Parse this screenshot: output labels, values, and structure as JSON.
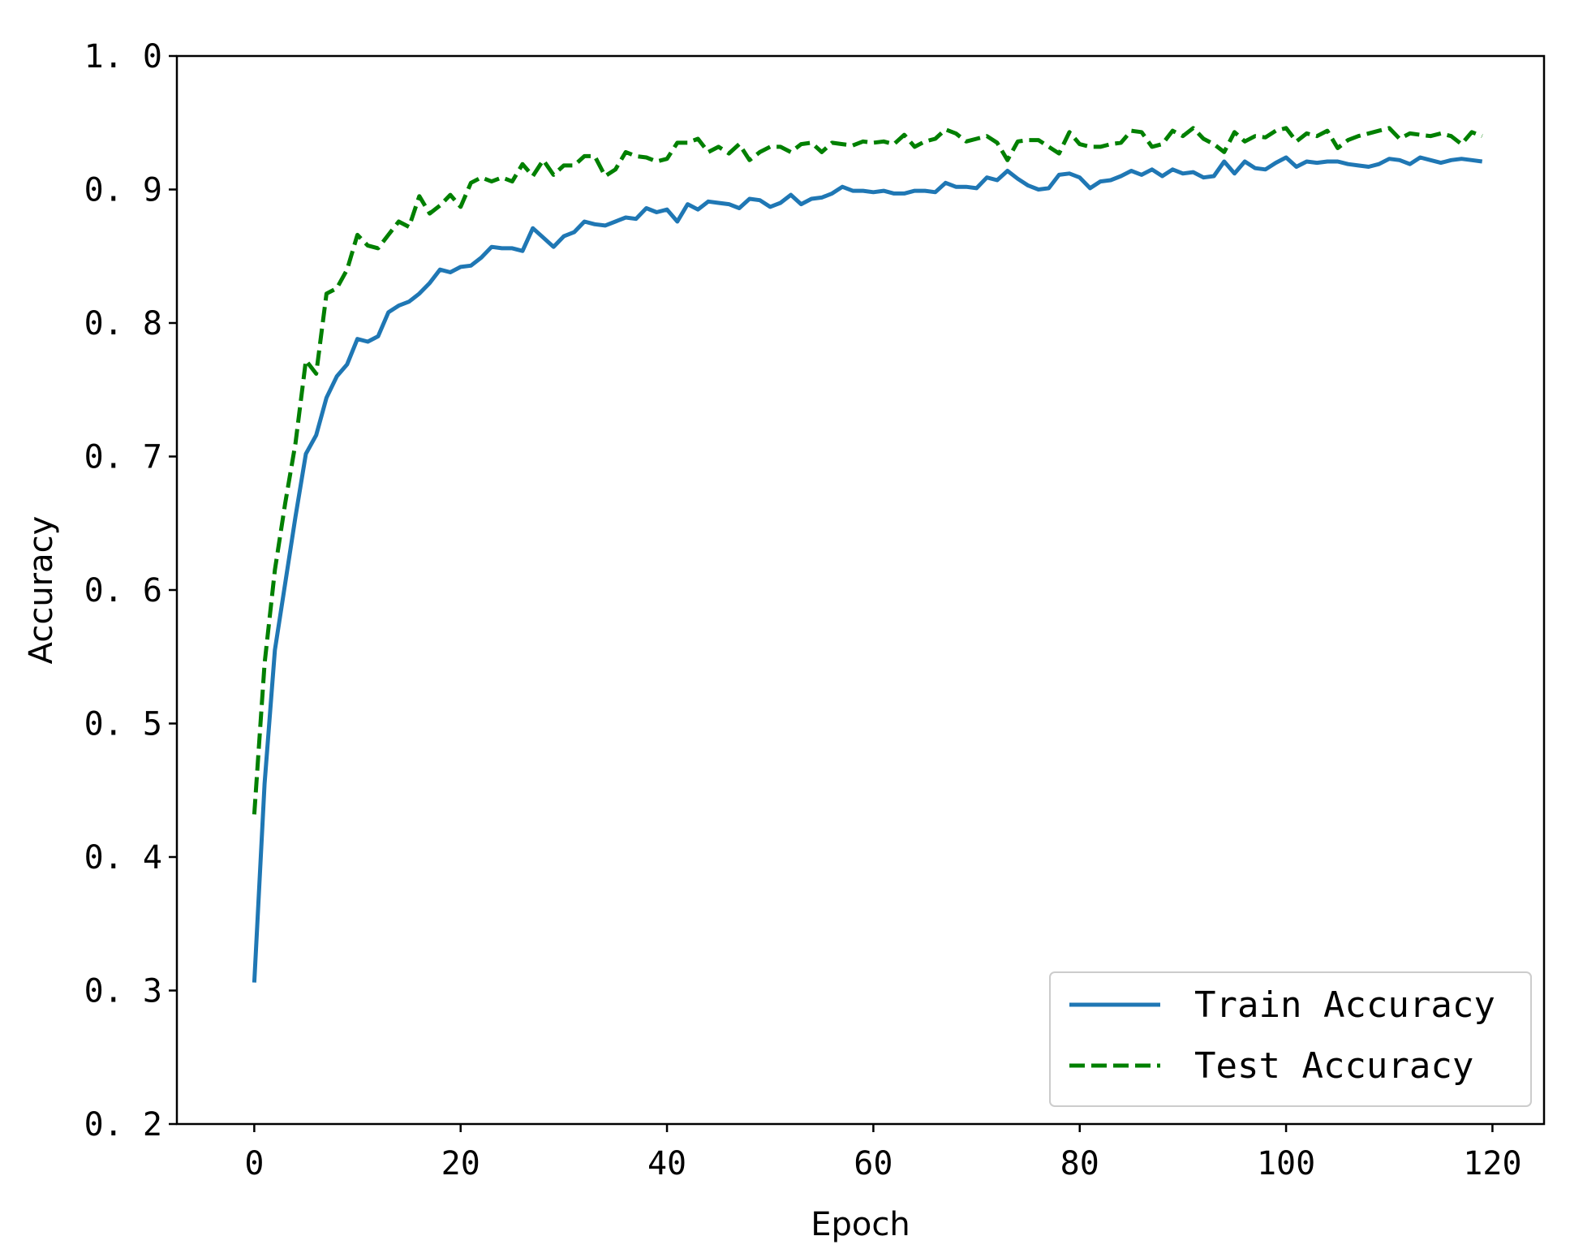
{
  "chart_data": {
    "type": "line",
    "title": "",
    "xlabel": "Epoch",
    "ylabel": "Accuracy",
    "xlim": [
      -7.5,
      125
    ],
    "ylim": [
      0.2,
      1.0
    ],
    "xticks": [
      0,
      20,
      40,
      60,
      80,
      100,
      120
    ],
    "yticks": [
      0.2,
      0.3,
      0.4,
      0.5,
      0.6,
      0.7,
      0.8,
      0.9,
      1.0
    ],
    "xtick_labels": [
      "0",
      "20",
      "40",
      "60",
      "80",
      "100",
      "120"
    ],
    "ytick_labels": [
      "0. 2",
      "0. 3",
      "0. 4",
      "0. 5",
      "0. 6",
      "0. 7",
      "0. 8",
      "0. 9",
      "1. 0"
    ],
    "grid": false,
    "legend_position": "bottom-right",
    "series": [
      {
        "name": "Train Accuracy",
        "color": "#1f77b4",
        "style": "solid",
        "x": [
          0,
          1,
          2,
          3,
          4,
          5,
          6,
          7,
          8,
          9,
          10,
          11,
          12,
          13,
          14,
          15,
          16,
          17,
          18,
          19,
          20,
          21,
          22,
          23,
          24,
          25,
          26,
          27,
          28,
          29,
          30,
          31,
          32,
          33,
          34,
          35,
          36,
          37,
          38,
          39,
          40,
          41,
          42,
          43,
          44,
          45,
          46,
          47,
          48,
          49,
          50,
          51,
          52,
          53,
          54,
          55,
          56,
          57,
          58,
          59,
          60,
          61,
          62,
          63,
          64,
          65,
          66,
          67,
          68,
          69,
          70,
          71,
          72,
          73,
          74,
          75,
          76,
          77,
          78,
          79,
          80,
          81,
          82,
          83,
          84,
          85,
          86,
          87,
          88,
          89,
          90,
          91,
          92,
          93,
          94,
          95,
          96,
          97,
          98,
          99,
          100,
          101,
          102,
          103,
          104,
          105,
          106,
          107,
          108,
          109,
          110,
          111,
          112,
          113,
          114,
          115,
          116,
          117,
          118,
          119
        ],
        "values": [
          0.306,
          0.455,
          0.555,
          0.605,
          0.655,
          0.702,
          0.716,
          0.744,
          0.76,
          0.769,
          0.788,
          0.786,
          0.79,
          0.808,
          0.813,
          0.816,
          0.822,
          0.83,
          0.84,
          0.838,
          0.842,
          0.843,
          0.849,
          0.857,
          0.856,
          0.856,
          0.854,
          0.871,
          0.864,
          0.857,
          0.865,
          0.868,
          0.876,
          0.874,
          0.873,
          0.876,
          0.879,
          0.878,
          0.886,
          0.883,
          0.885,
          0.876,
          0.889,
          0.885,
          0.891,
          0.89,
          0.889,
          0.886,
          0.893,
          0.892,
          0.887,
          0.89,
          0.896,
          0.889,
          0.893,
          0.894,
          0.897,
          0.902,
          0.899,
          0.899,
          0.898,
          0.899,
          0.897,
          0.897,
          0.899,
          0.899,
          0.898,
          0.905,
          0.902,
          0.902,
          0.901,
          0.909,
          0.907,
          0.914,
          0.908,
          0.903,
          0.9,
          0.901,
          0.911,
          0.912,
          0.909,
          0.901,
          0.906,
          0.907,
          0.91,
          0.914,
          0.911,
          0.915,
          0.91,
          0.915,
          0.912,
          0.913,
          0.909,
          0.91,
          0.921,
          0.912,
          0.921,
          0.916,
          0.915,
          0.92,
          0.924,
          0.917,
          0.921,
          0.92,
          0.921,
          0.921,
          0.919,
          0.918,
          0.917,
          0.919,
          0.923,
          0.922,
          0.919,
          0.924,
          0.922,
          0.92,
          0.922,
          0.923,
          0.922,
          0.921
        ]
      },
      {
        "name": "Test Accuracy",
        "color": "#008000",
        "style": "dashed",
        "x": [
          0,
          1,
          2,
          3,
          4,
          5,
          6,
          7,
          8,
          9,
          10,
          11,
          12,
          13,
          14,
          15,
          16,
          17,
          18,
          19,
          20,
          21,
          22,
          23,
          24,
          25,
          26,
          27,
          28,
          29,
          30,
          31,
          32,
          33,
          34,
          35,
          36,
          37,
          38,
          39,
          40,
          41,
          42,
          43,
          44,
          45,
          46,
          47,
          48,
          49,
          50,
          51,
          52,
          53,
          54,
          55,
          56,
          57,
          58,
          59,
          60,
          61,
          62,
          63,
          64,
          65,
          66,
          67,
          68,
          69,
          70,
          71,
          72,
          73,
          74,
          75,
          76,
          77,
          78,
          79,
          80,
          81,
          82,
          83,
          84,
          85,
          86,
          87,
          88,
          89,
          90,
          91,
          92,
          93,
          94,
          95,
          96,
          97,
          98,
          99,
          100,
          101,
          102,
          103,
          104,
          105,
          106,
          107,
          108,
          109,
          110,
          111,
          112,
          113,
          114,
          115,
          116,
          117,
          118,
          119
        ],
        "values": [
          0.432,
          0.545,
          0.615,
          0.665,
          0.71,
          0.772,
          0.762,
          0.822,
          0.826,
          0.84,
          0.866,
          0.858,
          0.856,
          0.866,
          0.876,
          0.872,
          0.895,
          0.882,
          0.888,
          0.896,
          0.887,
          0.905,
          0.909,
          0.906,
          0.909,
          0.906,
          0.919,
          0.91,
          0.922,
          0.911,
          0.918,
          0.918,
          0.925,
          0.925,
          0.91,
          0.915,
          0.928,
          0.925,
          0.924,
          0.921,
          0.923,
          0.935,
          0.935,
          0.938,
          0.928,
          0.932,
          0.927,
          0.934,
          0.922,
          0.928,
          0.932,
          0.932,
          0.928,
          0.934,
          0.935,
          0.928,
          0.935,
          0.934,
          0.933,
          0.936,
          0.935,
          0.936,
          0.934,
          0.941,
          0.932,
          0.936,
          0.938,
          0.945,
          0.942,
          0.936,
          0.938,
          0.94,
          0.935,
          0.922,
          0.936,
          0.937,
          0.937,
          0.932,
          0.927,
          0.943,
          0.934,
          0.932,
          0.932,
          0.934,
          0.935,
          0.944,
          0.943,
          0.932,
          0.934,
          0.944,
          0.94,
          0.946,
          0.938,
          0.934,
          0.928,
          0.943,
          0.936,
          0.94,
          0.939,
          0.944,
          0.946,
          0.936,
          0.942,
          0.94,
          0.944,
          0.931,
          0.937,
          0.94,
          0.942,
          0.944,
          0.946,
          0.938,
          0.942,
          0.941,
          0.94,
          0.942,
          0.94,
          0.934,
          0.943,
          0.94
        ]
      }
    ]
  }
}
